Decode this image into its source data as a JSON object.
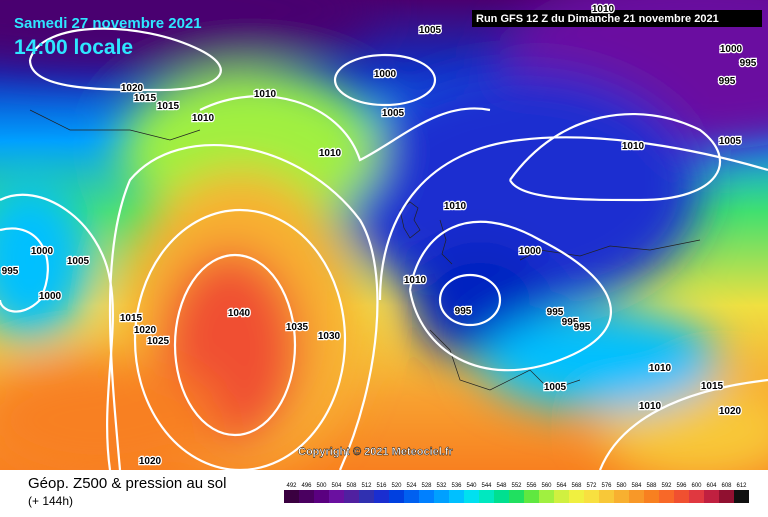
{
  "header": {
    "date": "Samedi 27 novembre 2021",
    "time": "14:00 locale",
    "run": "Run GFS 12 Z du Dimanche 21 novembre 2021"
  },
  "copyright": "Copyright © 2021 Meteociel.fr",
  "caption": {
    "title": "Géop. Z500 & pression au sol",
    "lead": "(+ 144h)"
  },
  "isobar_labels": [
    "1010",
    "1005",
    "1000",
    "1005",
    "1010",
    "1020",
    "1015",
    "1015",
    "1010",
    "1010",
    "1010",
    "1000",
    "995",
    "995",
    "1005",
    "1010",
    "1000",
    "1010",
    "995",
    "995",
    "995",
    "995",
    "1005",
    "1010",
    "1015",
    "1010",
    "1020",
    "1000",
    "1005",
    "995",
    "1000",
    "1015",
    "1020",
    "1025",
    "1040",
    "1035",
    "1030",
    "1020"
  ],
  "legend": {
    "values": [
      492,
      496,
      500,
      504,
      508,
      512,
      516,
      520,
      524,
      528,
      532,
      536,
      540,
      544,
      548,
      552,
      556,
      560,
      564,
      568,
      572,
      576,
      580,
      584,
      588,
      592,
      596,
      600,
      604,
      608,
      612
    ],
    "colors": [
      "#3a0040",
      "#4a0060",
      "#5a0080",
      "#6a10a0",
      "#5020a0",
      "#3030b0",
      "#1a2ed0",
      "#0040e0",
      "#0060f0",
      "#0080ff",
      "#00a0ff",
      "#00c0ff",
      "#00e0f0",
      "#00e8c0",
      "#00e090",
      "#20e060",
      "#60e840",
      "#a0f040",
      "#d0f040",
      "#f0f040",
      "#f8e040",
      "#f8c838",
      "#f8b030",
      "#f89828",
      "#f88020",
      "#f86828",
      "#f05030",
      "#e03840",
      "#c02040",
      "#901030",
      "#101010"
    ]
  }
}
